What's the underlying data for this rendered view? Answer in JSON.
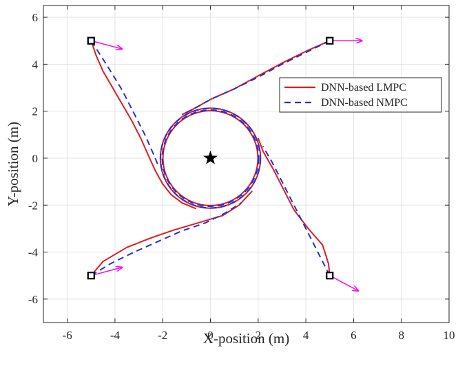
{
  "chart_data": {
    "type": "line",
    "title": "",
    "xlabel": "X-position (m)",
    "ylabel": "Y-position (m)",
    "xlim": [
      -7,
      10
    ],
    "ylim": [
      -7,
      6.5
    ],
    "xticks": [
      -6,
      -4,
      -2,
      0,
      2,
      4,
      6,
      8,
      10
    ],
    "yticks": [
      -6,
      -4,
      -2,
      0,
      2,
      4,
      6
    ],
    "xtick_labels": [
      "-6",
      "-4",
      "-2",
      "0",
      "2",
      "4",
      "6",
      "8",
      "10"
    ],
    "ytick_labels": [
      "-6",
      "-4",
      "-2",
      "0",
      "2",
      "4",
      "6"
    ],
    "grid": true,
    "legend_position": "top-right",
    "target": {
      "x": 0,
      "y": 0,
      "marker": "star"
    },
    "start_points": [
      {
        "x": -5,
        "y": 5,
        "heading_dx": 1.3,
        "heading_dy": -0.35
      },
      {
        "x": 5,
        "y": 5,
        "heading_dx": 1.35,
        "heading_dy": 0
      },
      {
        "x": 5,
        "y": -5,
        "heading_dx": 1.2,
        "heading_dy": -0.65
      },
      {
        "x": -5,
        "y": -5,
        "heading_dx": 1.3,
        "heading_dy": 0.35
      }
    ],
    "circle": {
      "cx": 0,
      "cy": 0,
      "r": 2.05
    },
    "series": [
      {
        "name": "DNN-based LMPC",
        "color": "#e41a1c",
        "dash": "solid",
        "trajectories": [
          [
            [
              -5,
              5
            ],
            [
              -4.8,
              4.4
            ],
            [
              -4.5,
              3.7
            ],
            [
              -4.1,
              3.0
            ],
            [
              -3.7,
              2.3
            ],
            [
              -3.3,
              1.6
            ],
            [
              -2.9,
              0.8
            ],
            [
              -2.55,
              0.0
            ],
            [
              -2.3,
              -0.55
            ],
            [
              -2.0,
              -1.1
            ],
            [
              -1.65,
              -1.55
            ],
            [
              -1.2,
              -1.9
            ],
            [
              -0.6,
              -2.15
            ]
          ],
          [
            [
              5,
              5
            ],
            [
              4.0,
              4.55
            ],
            [
              3.0,
              4.05
            ],
            [
              2.0,
              3.5
            ],
            [
              1.0,
              2.95
            ],
            [
              0.0,
              2.5
            ],
            [
              -0.7,
              2.1
            ],
            [
              -1.2,
              1.85
            ]
          ],
          [
            [
              5,
              -5
            ],
            [
              4.95,
              -4.5
            ],
            [
              4.7,
              -3.7
            ],
            [
              4.1,
              -3.0
            ],
            [
              3.5,
              -2.2
            ],
            [
              3.05,
              -1.3
            ],
            [
              2.65,
              -0.5
            ],
            [
              2.2,
              0.3
            ],
            [
              2.0,
              0.85
            ]
          ],
          [
            [
              -5,
              -5
            ],
            [
              -4.5,
              -4.4
            ],
            [
              -3.5,
              -3.8
            ],
            [
              -2.5,
              -3.4
            ],
            [
              -1.5,
              -3.05
            ],
            [
              -0.5,
              -2.75
            ],
            [
              0.5,
              -2.45
            ],
            [
              1.2,
              -2.0
            ],
            [
              1.75,
              -1.4
            ]
          ]
        ]
      },
      {
        "name": "DNN-based NMPC",
        "color": "#1f2fd6",
        "dash": "dashed",
        "trajectories": [
          [
            [
              -5,
              5
            ],
            [
              -4.3,
              3.9
            ],
            [
              -3.7,
              2.9
            ],
            [
              -3.2,
              1.9
            ],
            [
              -2.75,
              1.0
            ],
            [
              -2.4,
              0.2
            ],
            [
              -2.15,
              -0.4
            ]
          ],
          [
            [
              5,
              5
            ],
            [
              4.0,
              4.5
            ],
            [
              3.0,
              4.0
            ],
            [
              2.0,
              3.45
            ],
            [
              1.0,
              2.95
            ],
            [
              0.0,
              2.5
            ],
            [
              -0.6,
              2.15
            ],
            [
              -1.1,
              1.9
            ]
          ],
          [
            [
              5,
              -5
            ],
            [
              4.6,
              -4.2
            ],
            [
              4.1,
              -3.2
            ],
            [
              3.6,
              -2.2
            ],
            [
              3.1,
              -1.2
            ],
            [
              2.6,
              -0.2
            ],
            [
              2.2,
              0.5
            ]
          ],
          [
            [
              -5,
              -5
            ],
            [
              -4.2,
              -4.5
            ],
            [
              -3.2,
              -4.0
            ],
            [
              -2.2,
              -3.55
            ],
            [
              -1.2,
              -3.1
            ],
            [
              -0.2,
              -2.75
            ],
            [
              0.6,
              -2.35
            ],
            [
              1.3,
              -1.9
            ]
          ]
        ]
      }
    ]
  }
}
